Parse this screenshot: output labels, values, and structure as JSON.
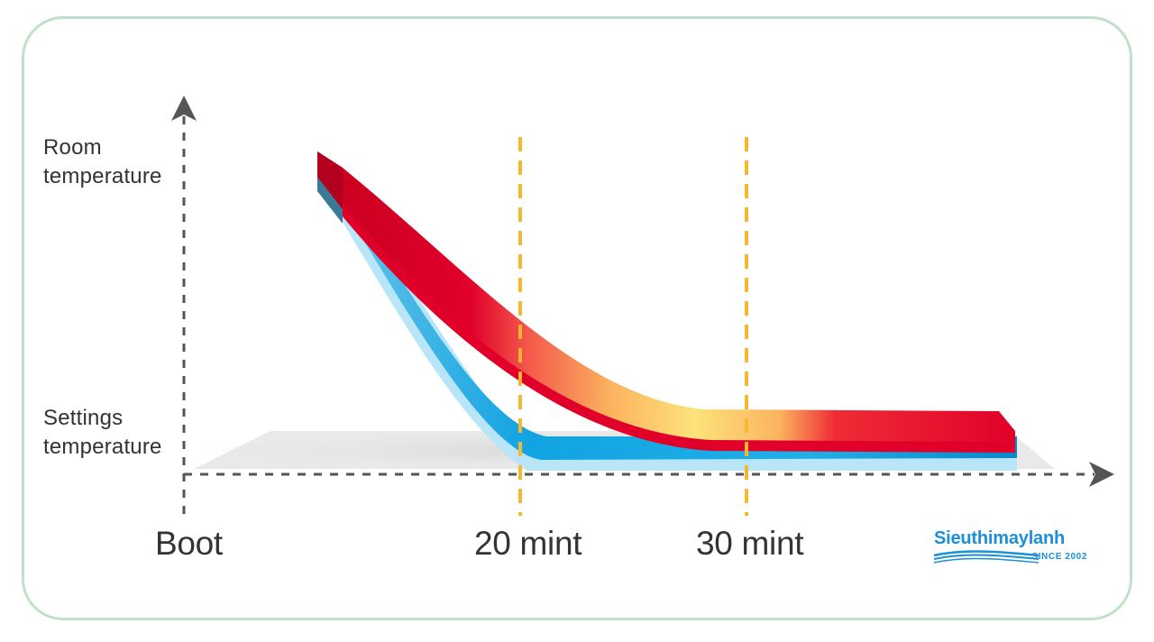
{
  "y_axis": {
    "top_label": [
      "Room",
      "temperature"
    ],
    "bottom_label": [
      "Settings",
      "temperature"
    ]
  },
  "x_axis": {
    "labels": [
      "Boot",
      "20 mint",
      "30 mint"
    ]
  },
  "logo": {
    "name": "Sieuthimaylanh",
    "since": "SINCE 2002"
  },
  "colors": {
    "axis": "#555555",
    "marker": "#f7b731",
    "band_red": "#e1002a",
    "band_warm": "#fbd86e",
    "band_blue": "#12a4e2",
    "band_light_blue": "#b8e5f7",
    "frame": "#bfe0c9"
  }
}
